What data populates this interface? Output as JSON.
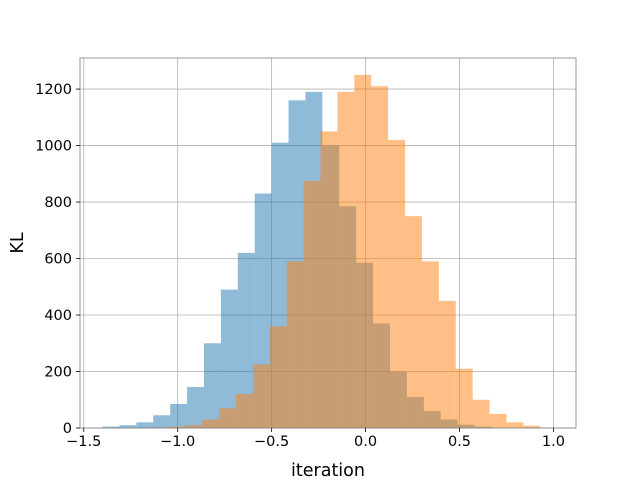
{
  "chart_data": {
    "type": "histogram",
    "title": "",
    "xlabel": "iteration",
    "ylabel": "KL",
    "xlim": [
      -1.52,
      1.12
    ],
    "ylim": [
      0,
      1310
    ],
    "xticks": [
      -1.5,
      -1.0,
      -0.5,
      0.0,
      0.5,
      1.0
    ],
    "xtick_labels": [
      "−1.5",
      "−1.0",
      "−0.5",
      "0.0",
      "0.5",
      "1.0"
    ],
    "yticks": [
      0,
      200,
      400,
      600,
      800,
      1000,
      1200
    ],
    "ytick_labels": [
      "0",
      "200",
      "400",
      "600",
      "800",
      "1000",
      "1200"
    ],
    "grid": true,
    "legend": false,
    "series": [
      {
        "color": "#1f77b4",
        "alpha": 0.5,
        "bin_edges": [
          -1.4,
          -1.31,
          -1.22,
          -1.13,
          -1.04,
          -0.95,
          -0.86,
          -0.77,
          -0.68,
          -0.59,
          -0.5,
          -0.41,
          -0.32,
          -0.23,
          -0.14,
          -0.05,
          0.04,
          0.13,
          0.22,
          0.31,
          0.4,
          0.49,
          0.58,
          0.67
        ],
        "counts": [
          5,
          10,
          20,
          45,
          85,
          145,
          300,
          490,
          620,
          830,
          1010,
          1160,
          1190,
          1000,
          785,
          585,
          370,
          200,
          110,
          60,
          30,
          12,
          5
        ]
      },
      {
        "color": "#ff7f0e",
        "alpha": 0.5,
        "bin_edges": [
          -1.14,
          -1.05,
          -0.96,
          -0.87,
          -0.78,
          -0.69,
          -0.6,
          -0.51,
          -0.42,
          -0.33,
          -0.24,
          -0.15,
          -0.06,
          0.03,
          0.12,
          0.21,
          0.3,
          0.39,
          0.48,
          0.57,
          0.66,
          0.75,
          0.84,
          0.93
        ],
        "counts": [
          2,
          5,
          10,
          30,
          70,
          120,
          225,
          360,
          590,
          875,
          1050,
          1190,
          1250,
          1210,
          1020,
          750,
          590,
          450,
          210,
          100,
          50,
          20,
          8
        ]
      }
    ]
  }
}
